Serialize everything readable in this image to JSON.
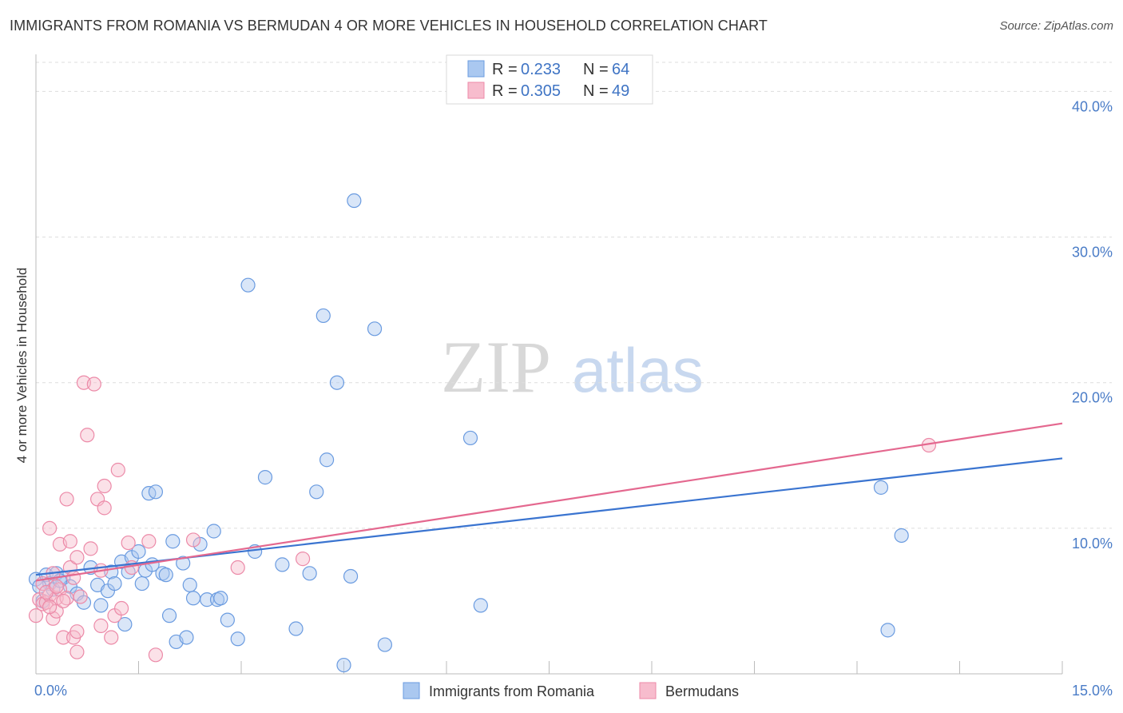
{
  "title": "IMMIGRANTS FROM ROMANIA VS BERMUDAN 4 OR MORE VEHICLES IN HOUSEHOLD CORRELATION CHART",
  "source": "Source: ZipAtlas.com",
  "watermark": {
    "zip": "ZIP",
    "atlas": "atlas"
  },
  "legend": {
    "r_label": "R =",
    "n_label": "N =",
    "rows": [
      {
        "r": "0.233",
        "n": "64"
      },
      {
        "r": "0.305",
        "n": "49"
      }
    ]
  },
  "chart_data": {
    "type": "scatter",
    "title": "IMMIGRANTS FROM ROMANIA VS BERMUDAN 4 OR MORE VEHICLES IN HOUSEHOLD CORRELATION CHART",
    "xlabel": "",
    "ylabel": "4 or more Vehicles in Household",
    "xlim": [
      0,
      15
    ],
    "ylim": [
      0,
      42
    ],
    "x_tick_labels": [
      {
        "value": 0,
        "label": "0.0%"
      },
      {
        "value": 15,
        "label": "15.0%"
      }
    ],
    "y_tick_labels": [
      {
        "value": 10,
        "label": "10.0%"
      },
      {
        "value": 20,
        "label": "20.0%"
      },
      {
        "value": 30,
        "label": "30.0%"
      },
      {
        "value": 40,
        "label": "40.0%"
      }
    ],
    "grid": true,
    "series": [
      {
        "name": "Immigrants from Romania",
        "color": "#6a9be0",
        "fill": "#aac8f0",
        "trend": {
          "x": [
            0,
            15
          ],
          "y": [
            6.8,
            14.8
          ],
          "color": "#3a74d0"
        },
        "points": [
          [
            0.0,
            6.5
          ],
          [
            0.15,
            6.8
          ],
          [
            0.2,
            6.2
          ],
          [
            0.3,
            6.9
          ],
          [
            0.4,
            6.6
          ],
          [
            0.5,
            6.0
          ],
          [
            0.6,
            5.5
          ],
          [
            0.7,
            4.9
          ],
          [
            0.8,
            7.3
          ],
          [
            0.9,
            6.1
          ],
          [
            0.95,
            4.7
          ],
          [
            1.05,
            5.7
          ],
          [
            1.1,
            7.0
          ],
          [
            1.15,
            6.2
          ],
          [
            1.25,
            7.7
          ],
          [
            1.3,
            3.4
          ],
          [
            1.35,
            7.0
          ],
          [
            1.4,
            8.0
          ],
          [
            1.5,
            8.4
          ],
          [
            1.55,
            6.2
          ],
          [
            1.6,
            7.1
          ],
          [
            1.65,
            12.4
          ],
          [
            1.7,
            7.5
          ],
          [
            1.75,
            12.5
          ],
          [
            1.85,
            6.9
          ],
          [
            1.9,
            6.8
          ],
          [
            1.95,
            4.0
          ],
          [
            2.0,
            9.1
          ],
          [
            2.05,
            2.2
          ],
          [
            2.15,
            7.6
          ],
          [
            2.2,
            2.5
          ],
          [
            2.25,
            6.1
          ],
          [
            2.3,
            5.2
          ],
          [
            2.4,
            8.9
          ],
          [
            2.5,
            5.1
          ],
          [
            2.6,
            9.8
          ],
          [
            2.65,
            5.1
          ],
          [
            2.7,
            5.2
          ],
          [
            2.8,
            3.7
          ],
          [
            2.95,
            2.4
          ],
          [
            3.1,
            26.7
          ],
          [
            3.2,
            8.4
          ],
          [
            3.35,
            13.5
          ],
          [
            3.6,
            7.5
          ],
          [
            3.8,
            3.1
          ],
          [
            4.0,
            6.9
          ],
          [
            4.1,
            12.5
          ],
          [
            4.2,
            24.6
          ],
          [
            4.25,
            14.7
          ],
          [
            4.4,
            20.0
          ],
          [
            4.5,
            0.6
          ],
          [
            4.6,
            6.7
          ],
          [
            4.65,
            32.5
          ],
          [
            4.95,
            23.7
          ],
          [
            5.1,
            2.0
          ],
          [
            6.35,
            16.2
          ],
          [
            6.5,
            4.7
          ],
          [
            12.35,
            12.8
          ],
          [
            12.45,
            3.0
          ],
          [
            12.65,
            9.5
          ],
          [
            0.05,
            6.0
          ],
          [
            0.1,
            5.0
          ],
          [
            0.25,
            5.8
          ],
          [
            0.35,
            6.4
          ]
        ]
      },
      {
        "name": "Bermudans",
        "color": "#ec8aa8",
        "fill": "#f7bccd",
        "trend": {
          "x": [
            0,
            15
          ],
          "y": [
            6.4,
            17.2
          ],
          "color": "#e4688f"
        },
        "points": [
          [
            0.0,
            4.0
          ],
          [
            0.05,
            5.1
          ],
          [
            0.1,
            4.8
          ],
          [
            0.15,
            4.9
          ],
          [
            0.2,
            5.4
          ],
          [
            0.2,
            10.0
          ],
          [
            0.25,
            6.9
          ],
          [
            0.25,
            3.8
          ],
          [
            0.3,
            4.3
          ],
          [
            0.3,
            5.2
          ],
          [
            0.35,
            8.9
          ],
          [
            0.35,
            5.8
          ],
          [
            0.4,
            2.5
          ],
          [
            0.45,
            12.0
          ],
          [
            0.45,
            5.2
          ],
          [
            0.5,
            9.1
          ],
          [
            0.5,
            7.3
          ],
          [
            0.55,
            2.5
          ],
          [
            0.6,
            1.5
          ],
          [
            0.6,
            2.9
          ],
          [
            0.6,
            8.0
          ],
          [
            0.7,
            20.0
          ],
          [
            0.75,
            16.4
          ],
          [
            0.8,
            8.6
          ],
          [
            0.85,
            19.9
          ],
          [
            0.9,
            12.0
          ],
          [
            0.95,
            3.3
          ],
          [
            0.95,
            7.1
          ],
          [
            1.0,
            12.9
          ],
          [
            1.0,
            11.4
          ],
          [
            1.1,
            2.5
          ],
          [
            1.15,
            4.0
          ],
          [
            1.2,
            14.0
          ],
          [
            1.25,
            4.5
          ],
          [
            1.35,
            9.0
          ],
          [
            1.4,
            7.3
          ],
          [
            1.65,
            9.1
          ],
          [
            1.75,
            1.3
          ],
          [
            2.3,
            9.2
          ],
          [
            2.95,
            7.3
          ],
          [
            3.9,
            7.9
          ],
          [
            13.05,
            15.7
          ],
          [
            0.1,
            6.2
          ],
          [
            0.15,
            5.6
          ],
          [
            0.2,
            4.6
          ],
          [
            0.3,
            6.0
          ],
          [
            0.4,
            5.0
          ],
          [
            0.55,
            6.6
          ],
          [
            0.65,
            5.3
          ]
        ]
      }
    ]
  }
}
